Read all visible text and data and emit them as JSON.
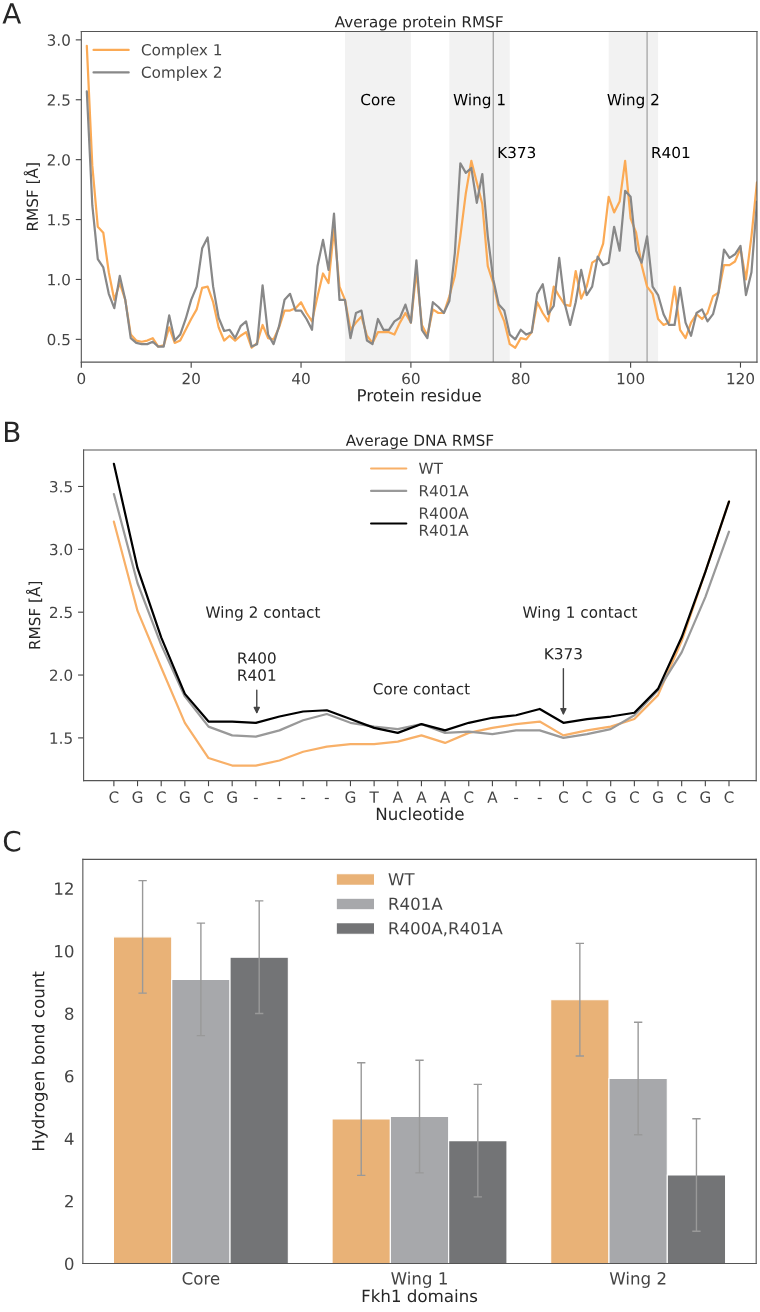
{
  "chart_data": [
    {
      "type": "line",
      "title": "Average protein RMSF",
      "xlabel": "Protein residue",
      "ylabel": "RMSF [Å]",
      "annotations": [
        "A"
      ],
      "x": [
        1,
        2,
        3,
        4,
        5,
        6,
        7,
        8,
        9,
        10,
        11,
        12,
        13,
        14,
        15,
        16,
        17,
        18,
        19,
        20,
        21,
        22,
        23,
        24,
        25,
        26,
        27,
        28,
        29,
        30,
        31,
        32,
        33,
        34,
        35,
        36,
        37,
        38,
        39,
        40,
        41,
        42,
        43,
        44,
        45,
        46,
        47,
        48,
        49,
        50,
        51,
        52,
        53,
        54,
        55,
        56,
        57,
        58,
        59,
        60,
        61,
        62,
        63,
        64,
        65,
        66,
        67,
        68,
        69,
        70,
        71,
        72,
        73,
        74,
        75,
        76,
        77,
        78,
        79,
        80,
        81,
        82,
        83,
        84,
        85,
        86,
        87,
        88,
        89,
        90,
        91,
        92,
        93,
        94,
        95,
        96,
        97,
        98,
        99,
        100,
        101,
        102,
        103,
        104,
        105,
        106,
        107,
        108,
        109,
        110,
        111,
        112,
        113,
        114,
        115,
        116,
        117,
        118,
        119,
        120,
        121,
        122,
        123
      ],
      "series": [
        {
          "name": "Complex 1",
          "color": "#fbaa55",
          "values": [
            2.95,
            1.95,
            1.44,
            1.39,
            1.06,
            0.83,
            0.97,
            0.83,
            0.54,
            0.49,
            0.48,
            0.49,
            0.51,
            0.44,
            0.45,
            0.6,
            0.47,
            0.49,
            0.58,
            0.67,
            0.75,
            0.93,
            0.94,
            0.81,
            0.6,
            0.49,
            0.53,
            0.49,
            0.53,
            0.56,
            0.43,
            0.47,
            0.62,
            0.51,
            0.5,
            0.6,
            0.74,
            0.74,
            0.76,
            0.81,
            0.72,
            0.65,
            0.86,
            1.05,
            0.97,
            1.42,
            0.94,
            0.83,
            0.58,
            0.64,
            0.69,
            0.53,
            0.47,
            0.56,
            0.56,
            0.56,
            0.54,
            0.64,
            0.72,
            0.64,
            1.07,
            0.62,
            0.53,
            0.75,
            0.72,
            0.72,
            0.86,
            1.03,
            1.36,
            1.72,
            1.99,
            1.81,
            1.63,
            1.11,
            0.97,
            0.76,
            0.65,
            0.46,
            0.43,
            0.51,
            0.5,
            0.56,
            0.81,
            0.72,
            0.65,
            0.94,
            0.86,
            0.79,
            0.78,
            1.07,
            0.84,
            0.94,
            1.14,
            1.17,
            1.3,
            1.69,
            1.56,
            1.65,
            1.99,
            1.51,
            1.39,
            1.12,
            0.94,
            0.88,
            0.67,
            0.62,
            0.64,
            0.94,
            0.58,
            0.51,
            0.64,
            0.71,
            0.67,
            0.72,
            0.86,
            0.89,
            1.12,
            1.12,
            1.15,
            1.26,
            1.0,
            1.36,
            1.81
          ]
        },
        {
          "name": "Complex 2",
          "color": "#888888",
          "values": [
            2.57,
            1.62,
            1.17,
            1.1,
            0.88,
            0.76,
            1.03,
            0.83,
            0.51,
            0.47,
            0.46,
            0.46,
            0.48,
            0.44,
            0.44,
            0.7,
            0.49,
            0.54,
            0.67,
            0.83,
            0.94,
            1.26,
            1.35,
            0.94,
            0.68,
            0.57,
            0.58,
            0.51,
            0.61,
            0.65,
            0.44,
            0.46,
            0.95,
            0.54,
            0.46,
            0.61,
            0.83,
            0.88,
            0.74,
            0.74,
            0.67,
            0.58,
            1.11,
            1.33,
            1.08,
            1.55,
            0.83,
            0.83,
            0.51,
            0.72,
            0.74,
            0.49,
            0.46,
            0.67,
            0.58,
            0.58,
            0.65,
            0.68,
            0.79,
            0.64,
            1.16,
            0.58,
            0.51,
            0.81,
            0.77,
            0.72,
            0.82,
            1.22,
            1.97,
            1.89,
            1.93,
            1.64,
            1.88,
            1.36,
            1.0,
            0.79,
            0.74,
            0.54,
            0.5,
            0.58,
            0.54,
            0.56,
            0.88,
            0.96,
            0.71,
            0.78,
            1.18,
            0.8,
            0.62,
            0.81,
            1.08,
            0.87,
            0.94,
            1.19,
            1.12,
            1.14,
            1.44,
            1.24,
            1.74,
            1.69,
            1.24,
            1.14,
            1.36,
            0.94,
            0.87,
            0.71,
            0.62,
            0.62,
            0.93,
            0.64,
            0.53,
            0.72,
            0.75,
            0.65,
            0.71,
            0.89,
            1.25,
            1.18,
            1.21,
            1.28,
            0.87,
            1.06,
            1.65
          ]
        }
      ],
      "xlim": [
        0,
        123
      ],
      "ylim": [
        0.31,
        3.07
      ],
      "xticks": [
        0,
        20,
        40,
        60,
        80,
        100,
        120
      ],
      "yticks": [
        0.5,
        {
          "value": 1,
          "label": "1.0"
        },
        1.5,
        {
          "value": 2,
          "label": "2.0"
        },
        2.5,
        {
          "value": 3,
          "label": "3.0"
        }
      ],
      "bands": [
        {
          "axis": "x",
          "from": 48,
          "to": 60,
          "label": "Core",
          "color": "#f2f2f2"
        },
        {
          "axis": "x",
          "from": 67,
          "to": 78,
          "label": "Wing 1",
          "color": "#f2f2f2"
        },
        {
          "axis": "x",
          "from": 96,
          "to": 105,
          "label": "Wing 2",
          "color": "#f2f2f2"
        }
      ],
      "ref_lines": [
        {
          "axis": "x",
          "value": 75,
          "label": "K373",
          "color": "#aaaaaa"
        },
        {
          "axis": "x",
          "value": 103,
          "label": "R401",
          "color": "#aaaaaa"
        }
      ],
      "legend": "top left",
      "grid": false
    },
    {
      "type": "line",
      "title": "Average DNA RMSF",
      "xlabel": "Nucleotide",
      "ylabel": "RMSF [Å]",
      "annotations": [
        "B",
        "Wing 2 contact",
        "R400\nR401",
        "Core contact",
        "Wing 1 contact",
        "K373"
      ],
      "categories": [
        "C",
        "G",
        "C",
        "G",
        "C",
        "G",
        "-",
        "-",
        "-",
        "-",
        "G",
        "T",
        "A",
        "A",
        "A",
        "C",
        "A",
        "-",
        "-",
        "C",
        "C",
        "G",
        "C",
        "G",
        "C",
        "G",
        "C"
      ],
      "series": [
        {
          "name": "WT",
          "color": "#f8b068",
          "values": [
            3.22,
            2.51,
            2.06,
            1.62,
            1.34,
            1.28,
            1.28,
            1.32,
            1.39,
            1.43,
            1.45,
            1.45,
            1.47,
            1.52,
            1.46,
            1.54,
            1.58,
            1.61,
            1.63,
            1.52,
            1.56,
            1.59,
            1.65,
            1.84,
            2.27,
            2.82,
            3.38
          ]
        },
        {
          "name": "R401A",
          "color": "#999999",
          "values": [
            3.44,
            2.73,
            2.24,
            1.83,
            1.59,
            1.52,
            1.51,
            1.56,
            1.64,
            1.69,
            1.62,
            1.59,
            1.57,
            1.61,
            1.54,
            1.55,
            1.53,
            1.56,
            1.56,
            1.5,
            1.53,
            1.57,
            1.68,
            1.88,
            2.18,
            2.62,
            3.14
          ]
        },
        {
          "name": "R400A\nR401A",
          "color": "#000000",
          "values": [
            3.68,
            2.85,
            2.3,
            1.85,
            1.63,
            1.63,
            1.62,
            1.67,
            1.71,
            1.72,
            1.65,
            1.58,
            1.54,
            1.61,
            1.56,
            1.62,
            1.66,
            1.68,
            1.73,
            1.62,
            1.65,
            1.67,
            1.7,
            1.89,
            2.3,
            2.82,
            3.38
          ]
        }
      ],
      "ylim": [
        1.16,
        3.79
      ],
      "yticks": [
        1.5,
        {
          "value": 2,
          "label": "2.0"
        },
        2.5,
        {
          "value": 3,
          "label": "3.0"
        },
        3.5
      ],
      "legend": "top",
      "grid": false
    },
    {
      "type": "bar",
      "xlabel": "Fkh1 domains",
      "ylabel": "Hydrogen bond count",
      "annotations": [
        "C"
      ],
      "categories": [
        "Core",
        "Wing 1",
        "Wing 2"
      ],
      "series": [
        {
          "name": "WT",
          "color": "#e9b277",
          "values": [
            10.45,
            4.62,
            8.44
          ],
          "errors": [
            1.8,
            1.8,
            1.8
          ]
        },
        {
          "name": "R401A",
          "color": "#a7a8ab",
          "values": [
            9.09,
            4.7,
            5.92
          ],
          "errors": [
            1.8,
            1.8,
            1.8
          ]
        },
        {
          "name": "R400A,R401A",
          "color": "#737476",
          "values": [
            9.8,
            3.93,
            2.83
          ],
          "errors": [
            1.8,
            1.8,
            1.8
          ]
        }
      ],
      "ylim": [
        0,
        12.93
      ],
      "yticks": [
        0,
        2,
        4,
        6,
        8,
        10,
        12
      ],
      "legend": "top",
      "grid": false
    }
  ]
}
